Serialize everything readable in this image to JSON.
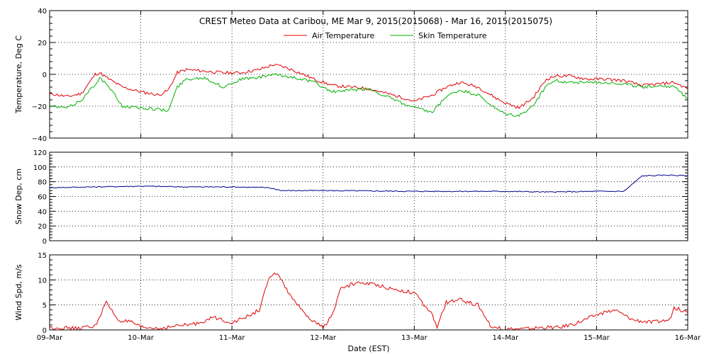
{
  "chart_data": [
    {
      "type": "line",
      "title": "CREST Meteo Data at Caribou, ME   Mar  9, 2015(2015068) - Mar 16, 2015(2015075)",
      "ylabel": "Temperature, Deg C",
      "ylim": [
        -40,
        40
      ],
      "yticks": [
        "−40",
        "−20",
        "0",
        "20",
        "40"
      ],
      "grid": true,
      "legend_position": "top-center",
      "x_days": [
        0,
        0.2,
        0.35,
        0.5,
        0.55,
        0.65,
        0.8,
        1.0,
        1.2,
        1.3,
        1.4,
        1.5,
        1.7,
        1.9,
        2.1,
        2.3,
        2.45,
        2.55,
        2.7,
        2.9,
        3.1,
        3.3,
        3.5,
        3.7,
        3.9,
        4.0,
        4.2,
        4.35,
        4.5,
        4.7,
        4.9,
        5.0,
        5.15,
        5.3,
        5.45,
        5.55,
        5.7,
        5.9,
        6.1,
        6.3,
        6.5,
        6.7,
        6.85,
        7.0
      ],
      "series": [
        {
          "name": "Air Temperature",
          "color": "#e00000",
          "values": [
            -12,
            -14,
            -12,
            0,
            1,
            -3,
            -8,
            -11,
            -13,
            -10,
            1,
            3,
            2,
            1,
            1,
            3,
            6,
            5,
            2,
            -3,
            -7,
            -8,
            -9,
            -12,
            -15,
            -17,
            -13,
            -8,
            -5,
            -8,
            -15,
            -18,
            -21,
            -15,
            -3,
            -1,
            -1,
            -3,
            -3,
            -4,
            -7,
            -6,
            -5,
            -9
          ]
        },
        {
          "name": "Skin Temperature",
          "color": "#00b000",
          "values": [
            -20,
            -21,
            -16,
            -6,
            -2,
            -8,
            -20,
            -21,
            -22,
            -23,
            -8,
            -3,
            -2,
            -8,
            -3,
            -2,
            0,
            -1,
            -2,
            -5,
            -11,
            -10,
            -9,
            -14,
            -19,
            -21,
            -24,
            -14,
            -10,
            -13,
            -22,
            -25,
            -26,
            -20,
            -7,
            -4,
            -5,
            -5,
            -5,
            -6,
            -8,
            -7,
            -8,
            -15
          ]
        }
      ]
    },
    {
      "type": "line",
      "ylabel": "Snow Dep, cm",
      "ylim": [
        0,
        120
      ],
      "yticks": [
        "0",
        "20",
        "40",
        "60",
        "80",
        "100",
        "120"
      ],
      "grid": true,
      "x_days": [
        0,
        0.5,
        1.0,
        1.5,
        2.0,
        2.4,
        2.55,
        3.0,
        4.0,
        5.0,
        5.5,
        6.0,
        6.3,
        6.5,
        6.8,
        7.0
      ],
      "series": [
        {
          "color": "#00008b",
          "values": [
            72,
            73,
            74,
            73,
            73,
            72,
            68,
            68,
            67,
            67,
            66,
            67,
            67,
            88,
            89,
            88
          ]
        }
      ]
    },
    {
      "type": "line",
      "ylabel": "Wind Spd, m/s",
      "ylim": [
        0,
        15
      ],
      "yticks": [
        "0",
        "5",
        "10",
        "15"
      ],
      "grid": true,
      "x_days": [
        0,
        0.3,
        0.5,
        0.62,
        0.75,
        0.9,
        1.0,
        1.2,
        1.4,
        1.6,
        1.8,
        2.0,
        2.15,
        2.3,
        2.4,
        2.5,
        2.6,
        2.8,
        2.95,
        3.0,
        3.1,
        3.2,
        3.4,
        3.6,
        3.8,
        4.0,
        4.1,
        4.2,
        4.25,
        4.35,
        4.5,
        4.7,
        4.85,
        5.0,
        5.2,
        5.4,
        5.6,
        5.8,
        6.0,
        6.2,
        6.4,
        6.6,
        6.8,
        6.85,
        7.0
      ],
      "series": [
        {
          "color": "#e00000",
          "values": [
            0.5,
            0.3,
            0.8,
            5.5,
            2,
            1.5,
            0.5,
            0.3,
            0.8,
            1.2,
            2.5,
            1.5,
            2.5,
            4,
            10,
            11.5,
            8,
            3,
            1,
            0.5,
            3,
            8.5,
            9.5,
            9,
            8,
            7.5,
            5,
            3,
            0.5,
            5.5,
            6,
            5,
            0.5,
            0.2,
            0.2,
            0.5,
            0.5,
            1.5,
            3,
            4,
            2,
            1.5,
            2,
            4.5,
            3.5
          ]
        }
      ]
    }
  ],
  "x_axis": {
    "label": "Date (EST)",
    "ticks": [
      "09–Mar",
      "10–Mar",
      "11–Mar",
      "12–Mar",
      "13–Mar",
      "14–Mar",
      "15–Mar",
      "16–Mar"
    ]
  }
}
